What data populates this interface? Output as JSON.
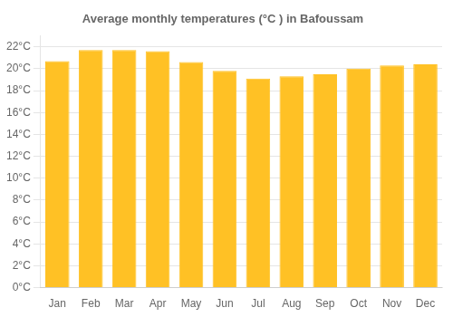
{
  "chart_data": {
    "type": "bar",
    "title": "Average monthly temperatures (°C ) in Bafoussam",
    "categories": [
      "Jan",
      "Feb",
      "Mar",
      "Apr",
      "May",
      "Jun",
      "Jul",
      "Aug",
      "Sep",
      "Oct",
      "Nov",
      "Dec"
    ],
    "values": [
      20.7,
      21.7,
      21.7,
      21.6,
      20.6,
      19.8,
      19.1,
      19.3,
      19.5,
      20.0,
      20.3,
      20.4
    ],
    "color": "#FFC125",
    "ylim": [
      0,
      23
    ],
    "yticks": [
      {
        "value": 0,
        "label": "0°C"
      },
      {
        "value": 2,
        "label": "2°C"
      },
      {
        "value": 4,
        "label": "4°C"
      },
      {
        "value": 6,
        "label": "6°C"
      },
      {
        "value": 8,
        "label": "8°C"
      },
      {
        "value": 10,
        "label": "10°C"
      },
      {
        "value": 12,
        "label": "12°C"
      },
      {
        "value": 14,
        "label": "14°C"
      },
      {
        "value": 16,
        "label": "16°C"
      },
      {
        "value": 18,
        "label": "18°C"
      },
      {
        "value": 20,
        "label": "20°C"
      },
      {
        "value": 22,
        "label": "22°C"
      }
    ],
    "grid": true
  }
}
